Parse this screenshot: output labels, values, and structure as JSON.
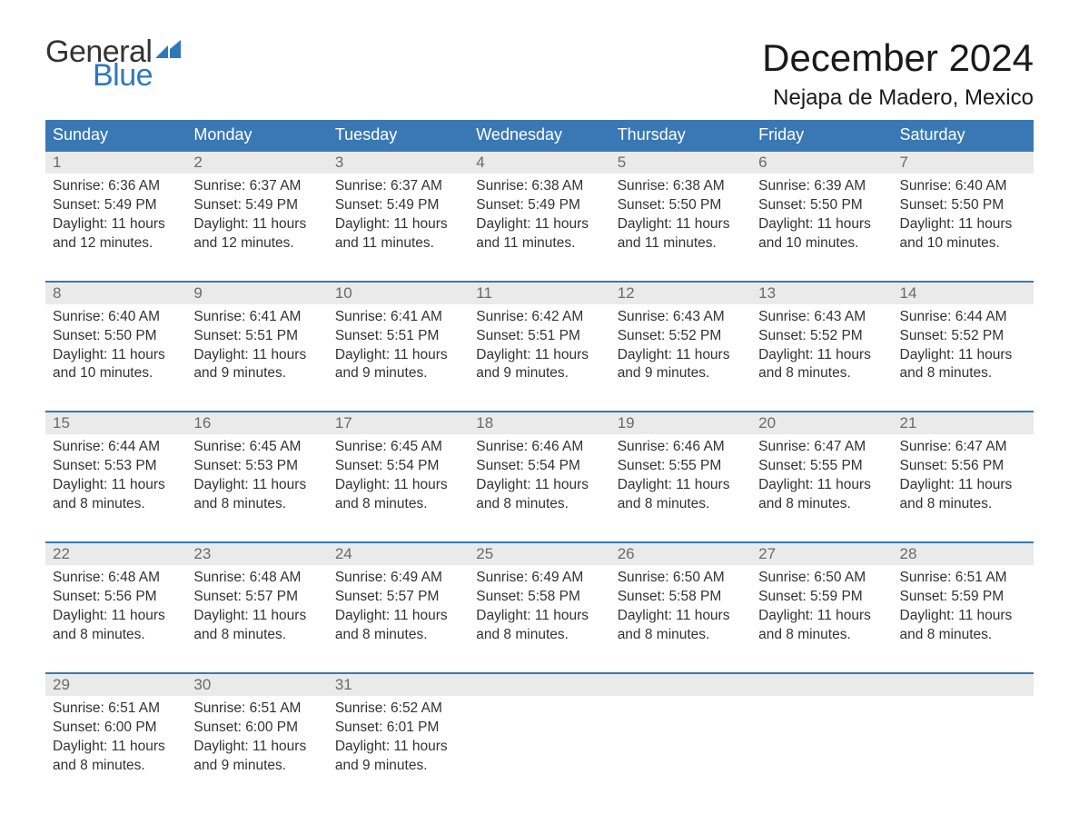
{
  "brand": {
    "word1": "General",
    "word2": "Blue",
    "flag_color": "#2f78bf"
  },
  "title": "December 2024",
  "location": "Nejapa de Madero, Mexico",
  "colors": {
    "header_bg": "#3a78b5",
    "header_text": "#ffffff",
    "daynum_bg": "#eaeaea",
    "daynum_text": "#6a6a6a",
    "body_text": "#333333",
    "rule": "#3a78b5",
    "page_bg": "#ffffff"
  },
  "typography": {
    "title_fontsize": 42,
    "location_fontsize": 24,
    "dayheader_fontsize": 18,
    "daynum_fontsize": 17,
    "body_fontsize": 15.5
  },
  "day_headers": [
    "Sunday",
    "Monday",
    "Tuesday",
    "Wednesday",
    "Thursday",
    "Friday",
    "Saturday"
  ],
  "weeks": [
    [
      {
        "n": "1",
        "sr": "Sunrise: 6:36 AM",
        "ss": "Sunset: 5:49 PM",
        "d1": "Daylight: 11 hours",
        "d2": "and 12 minutes."
      },
      {
        "n": "2",
        "sr": "Sunrise: 6:37 AM",
        "ss": "Sunset: 5:49 PM",
        "d1": "Daylight: 11 hours",
        "d2": "and 12 minutes."
      },
      {
        "n": "3",
        "sr": "Sunrise: 6:37 AM",
        "ss": "Sunset: 5:49 PM",
        "d1": "Daylight: 11 hours",
        "d2": "and 11 minutes."
      },
      {
        "n": "4",
        "sr": "Sunrise: 6:38 AM",
        "ss": "Sunset: 5:49 PM",
        "d1": "Daylight: 11 hours",
        "d2": "and 11 minutes."
      },
      {
        "n": "5",
        "sr": "Sunrise: 6:38 AM",
        "ss": "Sunset: 5:50 PM",
        "d1": "Daylight: 11 hours",
        "d2": "and 11 minutes."
      },
      {
        "n": "6",
        "sr": "Sunrise: 6:39 AM",
        "ss": "Sunset: 5:50 PM",
        "d1": "Daylight: 11 hours",
        "d2": "and 10 minutes."
      },
      {
        "n": "7",
        "sr": "Sunrise: 6:40 AM",
        "ss": "Sunset: 5:50 PM",
        "d1": "Daylight: 11 hours",
        "d2": "and 10 minutes."
      }
    ],
    [
      {
        "n": "8",
        "sr": "Sunrise: 6:40 AM",
        "ss": "Sunset: 5:50 PM",
        "d1": "Daylight: 11 hours",
        "d2": "and 10 minutes."
      },
      {
        "n": "9",
        "sr": "Sunrise: 6:41 AM",
        "ss": "Sunset: 5:51 PM",
        "d1": "Daylight: 11 hours",
        "d2": "and 9 minutes."
      },
      {
        "n": "10",
        "sr": "Sunrise: 6:41 AM",
        "ss": "Sunset: 5:51 PM",
        "d1": "Daylight: 11 hours",
        "d2": "and 9 minutes."
      },
      {
        "n": "11",
        "sr": "Sunrise: 6:42 AM",
        "ss": "Sunset: 5:51 PM",
        "d1": "Daylight: 11 hours",
        "d2": "and 9 minutes."
      },
      {
        "n": "12",
        "sr": "Sunrise: 6:43 AM",
        "ss": "Sunset: 5:52 PM",
        "d1": "Daylight: 11 hours",
        "d2": "and 9 minutes."
      },
      {
        "n": "13",
        "sr": "Sunrise: 6:43 AM",
        "ss": "Sunset: 5:52 PM",
        "d1": "Daylight: 11 hours",
        "d2": "and 8 minutes."
      },
      {
        "n": "14",
        "sr": "Sunrise: 6:44 AM",
        "ss": "Sunset: 5:52 PM",
        "d1": "Daylight: 11 hours",
        "d2": "and 8 minutes."
      }
    ],
    [
      {
        "n": "15",
        "sr": "Sunrise: 6:44 AM",
        "ss": "Sunset: 5:53 PM",
        "d1": "Daylight: 11 hours",
        "d2": "and 8 minutes."
      },
      {
        "n": "16",
        "sr": "Sunrise: 6:45 AM",
        "ss": "Sunset: 5:53 PM",
        "d1": "Daylight: 11 hours",
        "d2": "and 8 minutes."
      },
      {
        "n": "17",
        "sr": "Sunrise: 6:45 AM",
        "ss": "Sunset: 5:54 PM",
        "d1": "Daylight: 11 hours",
        "d2": "and 8 minutes."
      },
      {
        "n": "18",
        "sr": "Sunrise: 6:46 AM",
        "ss": "Sunset: 5:54 PM",
        "d1": "Daylight: 11 hours",
        "d2": "and 8 minutes."
      },
      {
        "n": "19",
        "sr": "Sunrise: 6:46 AM",
        "ss": "Sunset: 5:55 PM",
        "d1": "Daylight: 11 hours",
        "d2": "and 8 minutes."
      },
      {
        "n": "20",
        "sr": "Sunrise: 6:47 AM",
        "ss": "Sunset: 5:55 PM",
        "d1": "Daylight: 11 hours",
        "d2": "and 8 minutes."
      },
      {
        "n": "21",
        "sr": "Sunrise: 6:47 AM",
        "ss": "Sunset: 5:56 PM",
        "d1": "Daylight: 11 hours",
        "d2": "and 8 minutes."
      }
    ],
    [
      {
        "n": "22",
        "sr": "Sunrise: 6:48 AM",
        "ss": "Sunset: 5:56 PM",
        "d1": "Daylight: 11 hours",
        "d2": "and 8 minutes."
      },
      {
        "n": "23",
        "sr": "Sunrise: 6:48 AM",
        "ss": "Sunset: 5:57 PM",
        "d1": "Daylight: 11 hours",
        "d2": "and 8 minutes."
      },
      {
        "n": "24",
        "sr": "Sunrise: 6:49 AM",
        "ss": "Sunset: 5:57 PM",
        "d1": "Daylight: 11 hours",
        "d2": "and 8 minutes."
      },
      {
        "n": "25",
        "sr": "Sunrise: 6:49 AM",
        "ss": "Sunset: 5:58 PM",
        "d1": "Daylight: 11 hours",
        "d2": "and 8 minutes."
      },
      {
        "n": "26",
        "sr": "Sunrise: 6:50 AM",
        "ss": "Sunset: 5:58 PM",
        "d1": "Daylight: 11 hours",
        "d2": "and 8 minutes."
      },
      {
        "n": "27",
        "sr": "Sunrise: 6:50 AM",
        "ss": "Sunset: 5:59 PM",
        "d1": "Daylight: 11 hours",
        "d2": "and 8 minutes."
      },
      {
        "n": "28",
        "sr": "Sunrise: 6:51 AM",
        "ss": "Sunset: 5:59 PM",
        "d1": "Daylight: 11 hours",
        "d2": "and 8 minutes."
      }
    ],
    [
      {
        "n": "29",
        "sr": "Sunrise: 6:51 AM",
        "ss": "Sunset: 6:00 PM",
        "d1": "Daylight: 11 hours",
        "d2": "and 8 minutes."
      },
      {
        "n": "30",
        "sr": "Sunrise: 6:51 AM",
        "ss": "Sunset: 6:00 PM",
        "d1": "Daylight: 11 hours",
        "d2": "and 9 minutes."
      },
      {
        "n": "31",
        "sr": "Sunrise: 6:52 AM",
        "ss": "Sunset: 6:01 PM",
        "d1": "Daylight: 11 hours",
        "d2": "and 9 minutes."
      },
      null,
      null,
      null,
      null
    ]
  ]
}
